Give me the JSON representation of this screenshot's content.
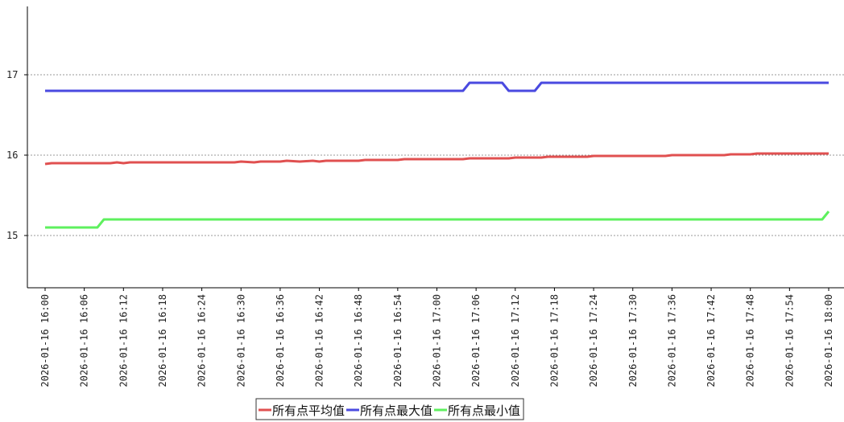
{
  "chart_data": {
    "type": "line",
    "x": [
      "2026-01-16 16:00",
      "2026-01-16 16:06",
      "2026-01-16 16:12",
      "2026-01-16 16:18",
      "2026-01-16 16:24",
      "2026-01-16 16:30",
      "2026-01-16 16:36",
      "2026-01-16 16:42",
      "2026-01-16 16:48",
      "2026-01-16 16:54",
      "2026-01-16 17:00",
      "2026-01-16 17:06",
      "2026-01-16 17:12",
      "2026-01-16 17:18",
      "2026-01-16 17:24",
      "2026-01-16 17:30",
      "2026-01-16 17:36",
      "2026-01-16 17:42",
      "2026-01-16 17:48",
      "2026-01-16 17:54",
      "2026-01-16 18:00"
    ],
    "y_ticks": [
      15,
      16,
      17
    ],
    "ylim": [
      14.35,
      17.85
    ],
    "grid": "horizontal-dashed",
    "legend_position": "bottom-center",
    "series": [
      {
        "name": "所有点平均值",
        "color": "#e05050",
        "points": [
          [
            "2026-01-16 16:00",
            15.89
          ],
          [
            "2026-01-16 16:01",
            15.9
          ],
          [
            "2026-01-16 16:06",
            15.9
          ],
          [
            "2026-01-16 16:10",
            15.9
          ],
          [
            "2026-01-16 16:11",
            15.91
          ],
          [
            "2026-01-16 16:12",
            15.9
          ],
          [
            "2026-01-16 16:13",
            15.91
          ],
          [
            "2026-01-16 16:29",
            15.91
          ],
          [
            "2026-01-16 16:30",
            15.92
          ],
          [
            "2026-01-16 16:32",
            15.91
          ],
          [
            "2026-01-16 16:33",
            15.92
          ],
          [
            "2026-01-16 16:36",
            15.92
          ],
          [
            "2026-01-16 16:37",
            15.93
          ],
          [
            "2026-01-16 16:39",
            15.92
          ],
          [
            "2026-01-16 16:41",
            15.93
          ],
          [
            "2026-01-16 16:42",
            15.92
          ],
          [
            "2026-01-16 16:43",
            15.93
          ],
          [
            "2026-01-16 16:48",
            15.93
          ],
          [
            "2026-01-16 16:49",
            15.94
          ],
          [
            "2026-01-16 16:54",
            15.94
          ],
          [
            "2026-01-16 16:55",
            15.95
          ],
          [
            "2026-01-16 17:04",
            15.95
          ],
          [
            "2026-01-16 17:05",
            15.96
          ],
          [
            "2026-01-16 17:11",
            15.96
          ],
          [
            "2026-01-16 17:12",
            15.97
          ],
          [
            "2026-01-16 17:16",
            15.97
          ],
          [
            "2026-01-16 17:17",
            15.98
          ],
          [
            "2026-01-16 17:23",
            15.98
          ],
          [
            "2026-01-16 17:24",
            15.99
          ],
          [
            "2026-01-16 17:35",
            15.99
          ],
          [
            "2026-01-16 17:36",
            16.0
          ],
          [
            "2026-01-16 17:44",
            16.0
          ],
          [
            "2026-01-16 17:45",
            16.01
          ],
          [
            "2026-01-16 17:48",
            16.01
          ],
          [
            "2026-01-16 17:49",
            16.02
          ],
          [
            "2026-01-16 18:00",
            16.02
          ]
        ]
      },
      {
        "name": "所有点最大值",
        "color": "#4a4ae0",
        "points": [
          [
            "2026-01-16 16:00",
            16.8
          ],
          [
            "2026-01-16 17:04",
            16.8
          ],
          [
            "2026-01-16 17:05",
            16.9
          ],
          [
            "2026-01-16 17:10",
            16.9
          ],
          [
            "2026-01-16 17:11",
            16.8
          ],
          [
            "2026-01-16 17:15",
            16.8
          ],
          [
            "2026-01-16 17:16",
            16.9
          ],
          [
            "2026-01-16 18:00",
            16.9
          ]
        ]
      },
      {
        "name": "所有点最小值",
        "color": "#5ef05e",
        "points": [
          [
            "2026-01-16 16:00",
            15.1
          ],
          [
            "2026-01-16 16:08",
            15.1
          ],
          [
            "2026-01-16 16:09",
            15.2
          ],
          [
            "2026-01-16 17:59",
            15.2
          ],
          [
            "2026-01-16 18:00",
            15.3
          ]
        ]
      }
    ]
  }
}
